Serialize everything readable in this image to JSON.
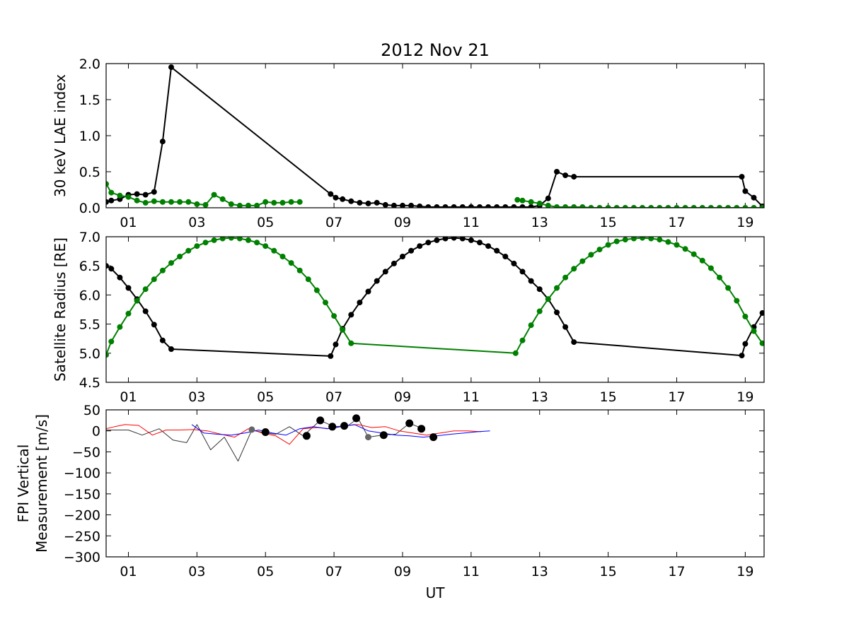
{
  "figure": {
    "title": "2012 Nov 21",
    "xlabel": "UT"
  },
  "colors": {
    "black": "#000000",
    "green": "#008000",
    "red": "#ff0000",
    "blue": "#0000ff",
    "darkgray": "#333333",
    "gray": "#666666"
  },
  "chart_data": [
    {
      "type": "line",
      "id": "lae",
      "ylabel": "30 keV LAE index",
      "xlim": [
        0.35,
        19.55
      ],
      "ylim": [
        0,
        2.0
      ],
      "xticks": [
        "01",
        "03",
        "05",
        "07",
        "09",
        "11",
        "13",
        "15",
        "17",
        "19"
      ],
      "xtick_values": [
        1,
        3,
        5,
        7,
        9,
        11,
        13,
        15,
        17,
        19
      ],
      "yticks": [
        "0.0",
        "0.5",
        "1.0",
        "1.5",
        "2.0"
      ],
      "ytick_values": [
        0,
        0.5,
        1.0,
        1.5,
        2.0
      ],
      "series": [
        {
          "color": "black",
          "markers": true,
          "linewidth": 2,
          "x": [
            0.35,
            0.5,
            0.75,
            1.0,
            1.25,
            1.5,
            1.75,
            2.0,
            2.25,
            6.9,
            7.05,
            7.25,
            7.5,
            7.75,
            8.0,
            8.25,
            8.5,
            8.75,
            9.0,
            9.25,
            9.5,
            9.75,
            10.0,
            10.25,
            10.5,
            10.75,
            11.0,
            11.25,
            11.5,
            11.75,
            12.0,
            12.25,
            12.5,
            12.75,
            13.0,
            13.25,
            13.5,
            13.75,
            14.0,
            18.9,
            19.0,
            19.25,
            19.5
          ],
          "y": [
            0.08,
            0.1,
            0.12,
            0.18,
            0.19,
            0.18,
            0.22,
            0.92,
            1.95,
            0.19,
            0.14,
            0.12,
            0.09,
            0.07,
            0.06,
            0.07,
            0.04,
            0.03,
            0.03,
            0.03,
            0.02,
            0.01,
            0.01,
            0.01,
            0.01,
            0.01,
            0.01,
            0.01,
            0.01,
            0.01,
            0.01,
            0.01,
            0.01,
            0.01,
            0.03,
            0.13,
            0.5,
            0.45,
            0.43,
            0.43,
            0.23,
            0.14,
            0.02
          ]
        },
        {
          "color": "green",
          "markers": true,
          "linewidth": 2,
          "x": [
            0.35,
            0.5,
            0.75,
            1.0,
            1.25,
            1.5,
            1.75,
            2.0,
            2.25,
            2.5,
            2.75,
            3.0,
            3.25,
            3.5,
            3.75,
            4.0,
            4.25,
            4.5,
            4.75,
            5.0,
            5.25,
            5.5,
            5.75,
            6.0
          ],
          "y": [
            0.33,
            0.21,
            0.17,
            0.15,
            0.1,
            0.07,
            0.09,
            0.08,
            0.08,
            0.08,
            0.08,
            0.05,
            0.04,
            0.18,
            0.12,
            0.05,
            0.03,
            0.03,
            0.03,
            0.08,
            0.07,
            0.07,
            0.08,
            0.08
          ]
        },
        {
          "color": "green",
          "markers": true,
          "linewidth": 2,
          "x": [
            12.35,
            12.5,
            12.75,
            13.0,
            13.25,
            13.5,
            13.75,
            14.0,
            14.25,
            14.5,
            14.75,
            15.0,
            15.25,
            15.5,
            15.75,
            16.0,
            16.25,
            16.5,
            16.75,
            17.0,
            17.25,
            17.5,
            17.75,
            18.0,
            18.25,
            18.5,
            18.75,
            19.0,
            19.25,
            19.5
          ],
          "y": [
            0.11,
            0.1,
            0.08,
            0.06,
            0.03,
            0.01,
            0.01,
            0.01,
            0.01,
            0.0,
            0.0,
            0.0,
            0.0,
            0.0,
            0.0,
            0.0,
            0.0,
            0.0,
            0.0,
            0.0,
            0.0,
            0.0,
            0.0,
            0.0,
            0.0,
            0.0,
            0.0,
            0.0,
            0.0,
            0.0
          ]
        }
      ]
    },
    {
      "type": "line",
      "id": "radius",
      "ylabel": "Satellite Radius [RE]",
      "xlim": [
        0.35,
        19.55
      ],
      "ylim": [
        4.5,
        7.0
      ],
      "xticks": [
        "01",
        "03",
        "05",
        "07",
        "09",
        "11",
        "13",
        "15",
        "17",
        "19"
      ],
      "xtick_values": [
        1,
        3,
        5,
        7,
        9,
        11,
        13,
        15,
        17,
        19
      ],
      "yticks": [
        "4.5",
        "5.0",
        "5.5",
        "6.0",
        "6.5",
        "7.0"
      ],
      "ytick_values": [
        4.5,
        5.0,
        5.5,
        6.0,
        6.5,
        7.0
      ],
      "series": [
        {
          "color": "black",
          "markers": true,
          "linewidth": 2,
          "x": [
            0.35,
            0.5,
            0.75,
            1.0,
            1.25,
            1.5,
            1.75,
            2.0,
            2.25,
            6.9,
            7.05,
            7.25,
            7.5,
            7.75,
            8.0,
            8.25,
            8.5,
            8.75,
            9.0,
            9.25,
            9.5,
            9.75,
            10.0,
            10.25,
            10.5,
            10.75,
            11.0,
            11.25,
            11.5,
            11.75,
            12.0,
            12.25,
            12.5,
            12.75,
            13.0,
            13.25,
            13.5,
            13.75,
            14.0,
            18.9,
            19.0,
            19.25,
            19.5
          ],
          "y": [
            6.5,
            6.45,
            6.3,
            6.12,
            5.93,
            5.72,
            5.49,
            5.22,
            5.07,
            4.95,
            5.15,
            5.42,
            5.66,
            5.87,
            6.06,
            6.24,
            6.4,
            6.54,
            6.66,
            6.76,
            6.84,
            6.9,
            6.94,
            6.97,
            6.98,
            6.97,
            6.94,
            6.9,
            6.84,
            6.76,
            6.66,
            6.54,
            6.4,
            6.24,
            6.1,
            5.93,
            5.7,
            5.45,
            5.19,
            4.96,
            5.16,
            5.45,
            5.69
          ]
        },
        {
          "color": "green",
          "markers": true,
          "linewidth": 2,
          "x": [
            0.35,
            0.5,
            0.75,
            1.0,
            1.25,
            1.5,
            1.75,
            2.0,
            2.25,
            2.5,
            2.75,
            3.0,
            3.25,
            3.5,
            3.75,
            4.0,
            4.25,
            4.5,
            4.75,
            5.0,
            5.25,
            5.5,
            5.75,
            6.0,
            6.25,
            6.5,
            6.75,
            7.0,
            7.25,
            7.5,
            12.3,
            12.5,
            12.75,
            13.0,
            13.25,
            13.5,
            13.75,
            14.0,
            14.25,
            14.5,
            14.75,
            15.0,
            15.25,
            15.5,
            15.75,
            16.0,
            16.25,
            16.5,
            16.75,
            17.0,
            17.25,
            17.5,
            17.75,
            18.0,
            18.25,
            18.5,
            18.75,
            19.0,
            19.25,
            19.5
          ],
          "y": [
            4.97,
            5.2,
            5.45,
            5.68,
            5.9,
            6.1,
            6.27,
            6.42,
            6.55,
            6.66,
            6.76,
            6.84,
            6.9,
            6.94,
            6.97,
            6.98,
            6.97,
            6.94,
            6.9,
            6.84,
            6.76,
            6.66,
            6.55,
            6.42,
            6.27,
            6.08,
            5.87,
            5.64,
            5.4,
            5.17,
            5.0,
            5.22,
            5.48,
            5.72,
            5.93,
            6.12,
            6.3,
            6.45,
            6.58,
            6.69,
            6.78,
            6.86,
            6.92,
            6.95,
            6.97,
            6.98,
            6.97,
            6.95,
            6.91,
            6.86,
            6.79,
            6.7,
            6.59,
            6.46,
            6.3,
            6.12,
            5.9,
            5.63,
            5.38,
            5.17
          ]
        }
      ]
    },
    {
      "type": "line",
      "id": "fpi",
      "ylabel_lines": [
        "FPI Vertical",
        "Measurement [m/s]"
      ],
      "xlim": [
        0.35,
        19.55
      ],
      "ylim": [
        -300,
        50
      ],
      "xticks": [
        "01",
        "03",
        "05",
        "07",
        "09",
        "11",
        "13",
        "15",
        "17",
        "19"
      ],
      "xtick_values": [
        1,
        3,
        5,
        7,
        9,
        11,
        13,
        15,
        17,
        19
      ],
      "yticks": [
        "50",
        "0",
        "−50",
        "−100",
        "−150",
        "−200",
        "−250",
        "−300"
      ],
      "ytick_values": [
        50,
        0,
        -50,
        -100,
        -150,
        -200,
        -250,
        -300
      ],
      "series": [
        {
          "color": "darkgray",
          "markers": false,
          "linewidth": 1,
          "x": [
            0.35,
            0.6,
            1.0,
            1.4,
            1.9,
            2.3,
            2.7,
            3.0,
            3.4,
            3.8,
            4.2,
            4.6,
            5.0,
            5.3,
            5.7,
            6.1,
            6.6,
            7.0,
            7.4,
            7.7,
            8.0,
            8.4,
            8.8,
            9.2,
            9.6
          ],
          "y": [
            2,
            2,
            2,
            -10,
            5,
            -22,
            -28,
            15,
            -45,
            -15,
            -72,
            2,
            -5,
            -8,
            10,
            -12,
            25,
            10,
            12,
            30,
            -15,
            -10,
            -8,
            18,
            5
          ]
        },
        {
          "color": "red",
          "markers": false,
          "linewidth": 1,
          "x": [
            0.35,
            0.6,
            0.9,
            1.3,
            1.7,
            2.1,
            2.5,
            2.9,
            3.3,
            3.7,
            4.1,
            4.5,
            4.9,
            5.3,
            5.7,
            6.1,
            6.5,
            6.9,
            7.3,
            7.7,
            8.1,
            8.5,
            8.9,
            9.3,
            9.7,
            10.1,
            10.5,
            10.9,
            11.3
          ],
          "y": [
            5,
            10,
            15,
            13,
            -10,
            2,
            2,
            3,
            0,
            -8,
            -15,
            5,
            -5,
            -12,
            -32,
            5,
            8,
            5,
            12,
            15,
            8,
            10,
            0,
            -5,
            -10,
            -5,
            0,
            0,
            -2
          ]
        },
        {
          "color": "blue",
          "markers": false,
          "linewidth": 1,
          "x": [
            2.85,
            3.2,
            3.6,
            4.0,
            4.4,
            4.8,
            5.2,
            5.6,
            6.0,
            6.4,
            6.8,
            7.2,
            7.6,
            8.0,
            8.4,
            8.8,
            9.2,
            9.6,
            10.0,
            10.4,
            10.8,
            11.2,
            11.55
          ],
          "y": [
            15,
            -5,
            -8,
            -10,
            -5,
            2,
            -5,
            -10,
            5,
            10,
            5,
            10,
            15,
            0,
            -5,
            -10,
            -12,
            -15,
            -12,
            -8,
            -5,
            -2,
            0
          ]
        },
        {
          "color": "black",
          "markers": true,
          "marker_size": 5,
          "linewidth": 0,
          "x": [
            5.0,
            6.2,
            6.6,
            6.95,
            7.3,
            7.65,
            8.45,
            9.2,
            9.55,
            9.9
          ],
          "y": [
            -3,
            -12,
            25,
            10,
            12,
            30,
            -10,
            18,
            5,
            -15
          ]
        },
        {
          "color": "gray",
          "markers": true,
          "marker_size": 4,
          "linewidth": 0,
          "x": [
            4.6,
            8.0
          ],
          "y": [
            3,
            -15
          ]
        }
      ]
    }
  ]
}
